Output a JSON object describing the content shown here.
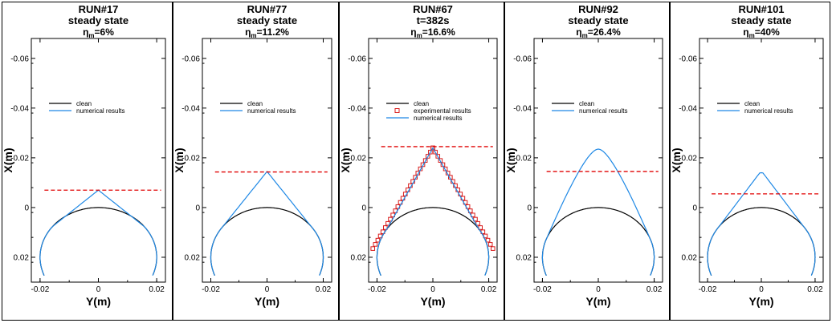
{
  "figure": {
    "panel_count": 5
  },
  "chart_data": [
    {
      "type": "line",
      "title": [
        "RUN#17",
        "steady state"
      ],
      "eta": {
        "base": "η",
        "sub": "m",
        "value": "=6%"
      },
      "xlabel": "Y(m)",
      "ylabel": "X(m)",
      "xlim": [
        -0.023,
        0.023
      ],
      "ylim": [
        0.03,
        -0.068
      ],
      "y_inverted": true,
      "xticks": [
        -0.02,
        0,
        0.02
      ],
      "xtick_labels": [
        "-0.02",
        "0",
        "0.02"
      ],
      "yticks": [
        -0.06,
        -0.04,
        -0.02,
        0,
        0.02
      ],
      "ytick_labels": [
        "-0.06",
        "-0.04",
        "-0.02",
        "0",
        "0.02"
      ],
      "legend": [
        "clean",
        "numerical results"
      ],
      "series": [
        {
          "name": "clean",
          "color": "#000000",
          "shape": "clean_circle",
          "radius": 0.02
        },
        {
          "name": "numerical results",
          "color": "#1e88e5",
          "shape": "ice_peak",
          "peak_y": 0.0,
          "peak_x": -0.007,
          "rounded_tip": false
        }
      ],
      "reference_line": {
        "x": -0.007,
        "color": "#e00000"
      }
    },
    {
      "type": "line",
      "title": [
        "RUN#77",
        "steady state"
      ],
      "eta": {
        "base": "η",
        "sub": "m",
        "value": "=11.2%"
      },
      "xlabel": "Y(m)",
      "ylabel": "X(m)",
      "xlim": [
        -0.023,
        0.023
      ],
      "ylim": [
        0.03,
        -0.068
      ],
      "y_inverted": true,
      "xticks": [
        -0.02,
        0,
        0.02
      ],
      "xtick_labels": [
        "-0.02",
        "0",
        "0.02"
      ],
      "yticks": [
        -0.06,
        -0.04,
        -0.02,
        0,
        0.02
      ],
      "ytick_labels": [
        "-0.06",
        "-0.04",
        "-0.02",
        "0",
        "0.02"
      ],
      "legend": [
        "clean",
        "numerical results"
      ],
      "series": [
        {
          "name": "clean",
          "color": "#000000",
          "shape": "clean_circle",
          "radius": 0.02
        },
        {
          "name": "numerical results",
          "color": "#1e88e5",
          "shape": "ice_peak",
          "peak_y": 0.0,
          "peak_x": -0.0145,
          "rounded_tip": false
        }
      ],
      "reference_line": {
        "x": -0.0143,
        "color": "#e00000"
      }
    },
    {
      "type": "line",
      "title": [
        "RUN#67",
        "t=382s"
      ],
      "eta": {
        "base": "η",
        "sub": "m",
        "value": "=16.6%"
      },
      "xlabel": "Y(m)",
      "ylabel": "X(m)",
      "xlim": [
        -0.023,
        0.023
      ],
      "ylim": [
        0.03,
        -0.068
      ],
      "y_inverted": true,
      "xticks": [
        -0.02,
        0,
        0.02
      ],
      "xtick_labels": [
        "-0.02",
        "0",
        "0.02"
      ],
      "yticks": [
        -0.06,
        -0.04,
        -0.02,
        0,
        0.02
      ],
      "ytick_labels": [
        "-0.06",
        "-0.04",
        "-0.02",
        "0",
        "0.02"
      ],
      "legend": [
        "clean",
        "experimental results",
        "numerical results"
      ],
      "series": [
        {
          "name": "clean",
          "color": "#000000",
          "shape": "clean_circle",
          "radius": 0.02
        },
        {
          "name": "experimental results",
          "color": "#d81b1b",
          "shape": "triangle_markers",
          "peak_y": 0.0,
          "peak_x": -0.024,
          "base_y": 0.0215,
          "base_x": 0.0165,
          "count_per_side": 24
        },
        {
          "name": "numerical results",
          "color": "#1e88e5",
          "shape": "triangle",
          "peak_y": 0.0,
          "peak_x": -0.024,
          "base_y": 0.0215,
          "base_x": 0.0165
        }
      ],
      "reference_line": {
        "x": -0.0245,
        "color": "#e00000"
      }
    },
    {
      "type": "line",
      "title": [
        "RUN#92",
        "steady state"
      ],
      "eta": {
        "base": "η",
        "sub": "m",
        "value": "=26.4%"
      },
      "xlabel": "Y(m)",
      "ylabel": "X(m)",
      "xlim": [
        -0.023,
        0.023
      ],
      "ylim": [
        0.03,
        -0.068
      ],
      "y_inverted": true,
      "xticks": [
        -0.02,
        0,
        0.02
      ],
      "xtick_labels": [
        "-0.02",
        "0",
        "0.02"
      ],
      "yticks": [
        -0.06,
        -0.04,
        -0.02,
        0,
        0.02
      ],
      "ytick_labels": [
        "-0.06",
        "-0.04",
        "-0.02",
        "0",
        "0.02"
      ],
      "legend": [
        "clean",
        "numerical results"
      ],
      "series": [
        {
          "name": "clean",
          "color": "#000000",
          "shape": "clean_circle",
          "radius": 0.02
        },
        {
          "name": "numerical results",
          "color": "#1e88e5",
          "shape": "ice_dome",
          "peak_y": 0.0,
          "peak_x": -0.0235
        }
      ],
      "reference_line": {
        "x": -0.0145,
        "color": "#e00000"
      }
    },
    {
      "type": "line",
      "title": [
        "RUN#101",
        "steady state"
      ],
      "eta": {
        "base": "η",
        "sub": "m",
        "value": "=40%"
      },
      "xlabel": "Y(m)",
      "ylabel": "X(m)",
      "xlim": [
        -0.023,
        0.023
      ],
      "ylim": [
        0.03,
        -0.068
      ],
      "y_inverted": true,
      "xticks": [
        -0.02,
        0,
        0.02
      ],
      "xtick_labels": [
        "-0.02",
        "0",
        "0.02"
      ],
      "yticks": [
        -0.06,
        -0.04,
        -0.02,
        0,
        0.02
      ],
      "ytick_labels": [
        "-0.06",
        "-0.04",
        "-0.02",
        "0",
        "0.02"
      ],
      "legend": [
        "clean",
        "numerical results"
      ],
      "series": [
        {
          "name": "clean",
          "color": "#000000",
          "shape": "clean_circle",
          "radius": 0.02
        },
        {
          "name": "numerical results",
          "color": "#1e88e5",
          "shape": "ice_peak",
          "peak_y": 0.0,
          "peak_x": -0.0135,
          "rounded_tip": true
        }
      ],
      "reference_line": {
        "x": -0.0055,
        "color": "#e00000"
      }
    }
  ]
}
